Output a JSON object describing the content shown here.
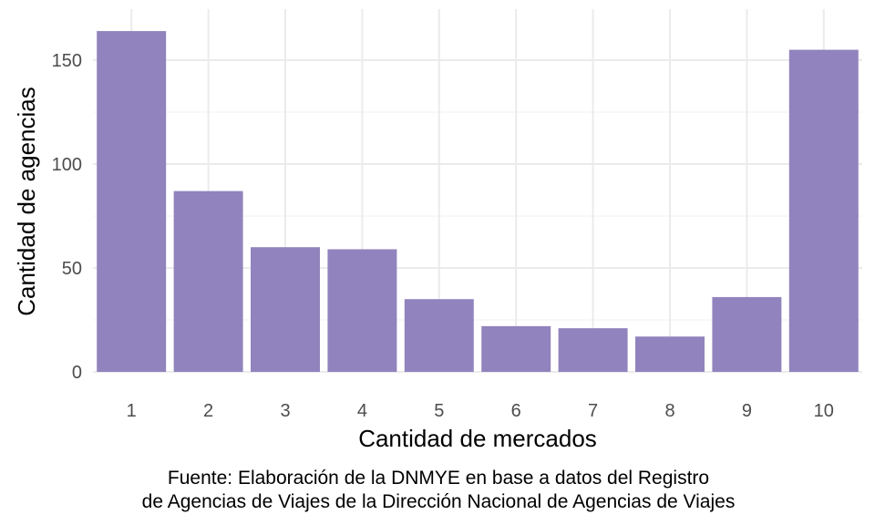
{
  "chart_data": {
    "type": "bar",
    "categories": [
      "1",
      "2",
      "3",
      "4",
      "5",
      "6",
      "7",
      "8",
      "9",
      "10"
    ],
    "values": [
      164,
      87,
      60,
      59,
      35,
      22,
      21,
      17,
      36,
      155
    ],
    "xlabel": "Cantidad de mercados",
    "ylabel": "Cantidad de agencias",
    "yticks": [
      0,
      50,
      100,
      150
    ],
    "ylim": [
      0,
      172
    ],
    "grid": true,
    "bar_color": "#9183BD",
    "caption_lines": [
      "Fuente: Elaboración de la DNMYE en base a datos del Registro",
      "de Agencias de Viajes de la Dirección Nacional de Agencias de Viajes"
    ]
  }
}
